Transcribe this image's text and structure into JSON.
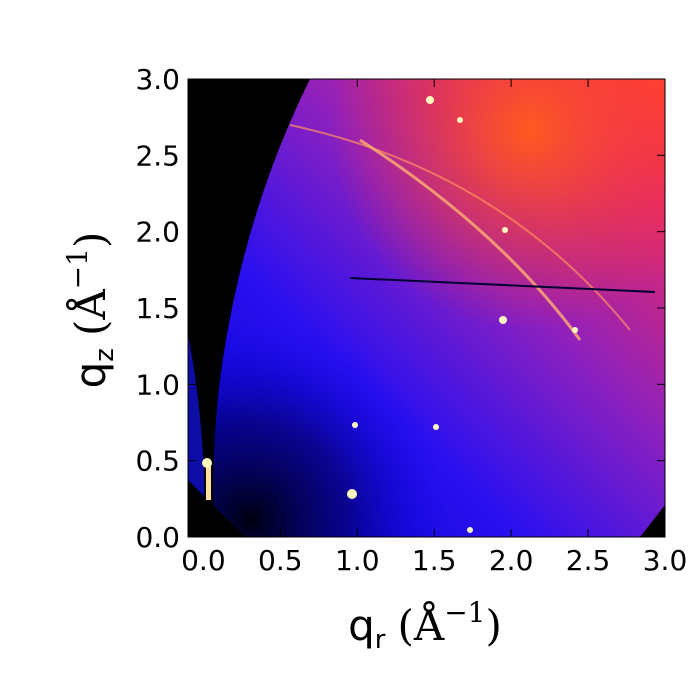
{
  "chart_data": {
    "type": "image",
    "xlabel": {
      "base": "q",
      "sub": "r",
      "unit": "(Å",
      "sup": "−1",
      "close": ")"
    },
    "ylabel": {
      "base": "q",
      "sub": "z",
      "unit": "(Å",
      "sup": "−1",
      "close": ")"
    },
    "xlim": [
      -0.1,
      3.0
    ],
    "ylim": [
      0,
      3.0
    ],
    "xticks": [
      {
        "value": 0,
        "label": "0.0"
      },
      0.5,
      {
        "value": 1,
        "label": "1.0"
      },
      1.5,
      {
        "value": 2,
        "label": "2.0"
      },
      2.5,
      {
        "value": 3,
        "label": "3.0"
      }
    ],
    "yticks": [
      {
        "value": 0,
        "label": "0.0"
      },
      0.5,
      {
        "value": 1,
        "label": "1.0"
      },
      1.5,
      {
        "value": 2,
        "label": "2.0"
      },
      2.5,
      {
        "value": 3,
        "label": "3.0"
      }
    ]
  }
}
